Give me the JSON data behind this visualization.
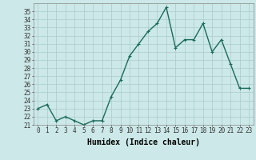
{
  "x": [
    0,
    1,
    2,
    3,
    4,
    5,
    6,
    7,
    8,
    9,
    10,
    11,
    12,
    13,
    14,
    15,
    16,
    17,
    18,
    19,
    20,
    21,
    22,
    23
  ],
  "y": [
    23.0,
    23.5,
    21.5,
    22.0,
    21.5,
    21.0,
    21.5,
    21.5,
    24.5,
    26.5,
    29.5,
    31.0,
    32.5,
    33.5,
    35.5,
    30.5,
    31.5,
    31.5,
    33.5,
    30.0,
    31.5,
    28.5,
    25.5,
    25.5
  ],
  "line_color": "#1a6b5a",
  "marker": "+",
  "marker_size": 3,
  "bg_color": "#cce8e8",
  "grid_color": "#aacccc",
  "xlabel": "Humidex (Indice chaleur)",
  "xlim": [
    -0.5,
    23.5
  ],
  "ylim": [
    21,
    36
  ],
  "yticks": [
    21,
    22,
    23,
    24,
    25,
    26,
    27,
    28,
    29,
    30,
    31,
    32,
    33,
    34,
    35
  ],
  "xticks": [
    0,
    1,
    2,
    3,
    4,
    5,
    6,
    7,
    8,
    9,
    10,
    11,
    12,
    13,
    14,
    15,
    16,
    17,
    18,
    19,
    20,
    21,
    22,
    23
  ],
  "xlabel_fontsize": 7,
  "tick_fontsize": 5.5,
  "line_width": 1.0
}
